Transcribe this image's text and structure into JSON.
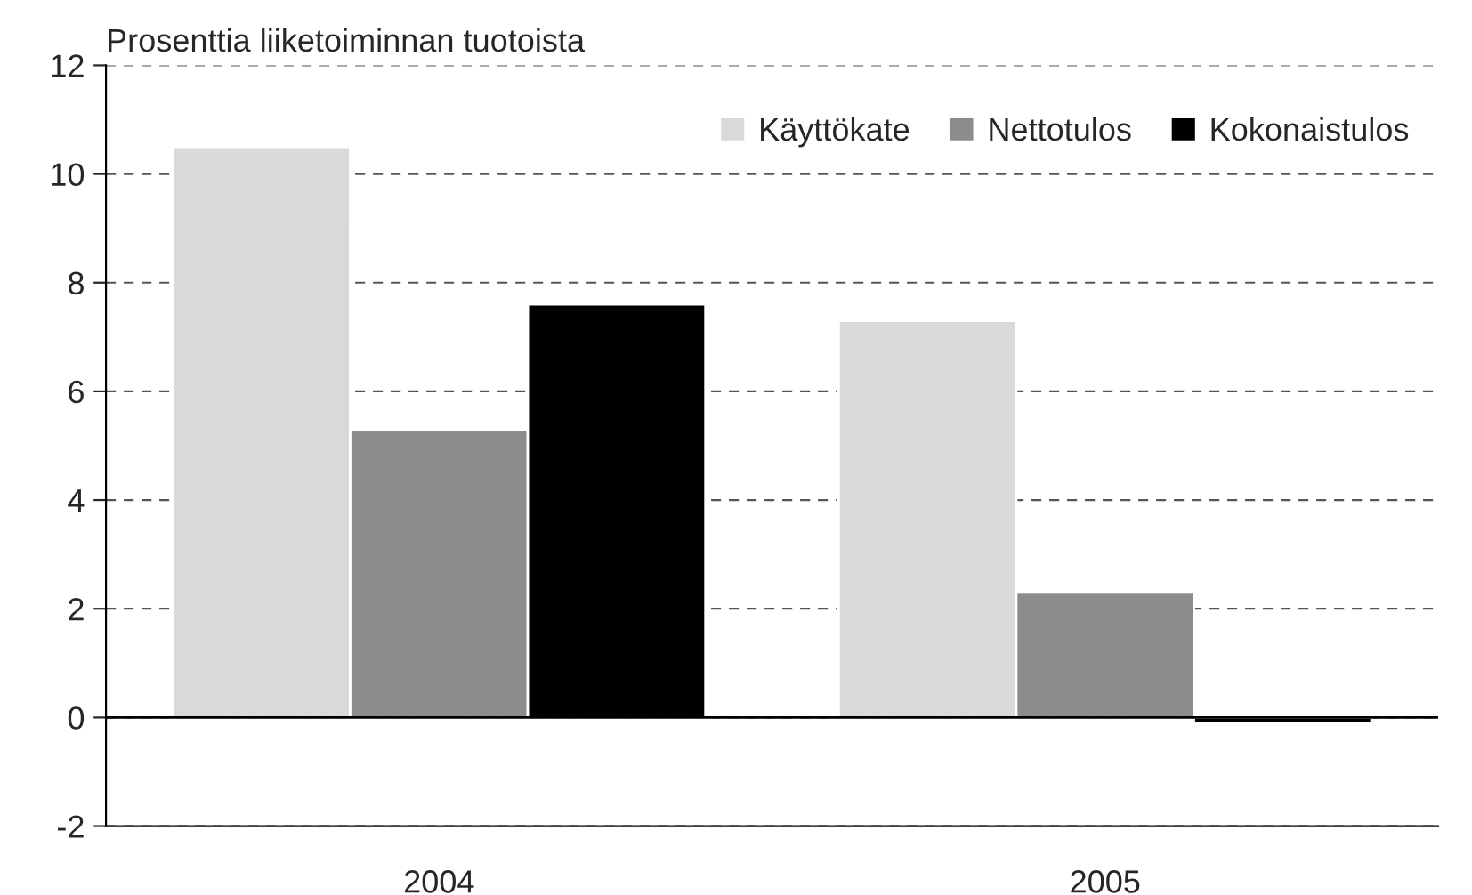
{
  "chart_data": {
    "type": "bar",
    "ylabel": "Prosenttia liiketoiminnan tuotoista",
    "categories": [
      "2004",
      "2005"
    ],
    "series": [
      {
        "name": "Käyttökate",
        "color": "#d9d9d9",
        "values": [
          10.5,
          7.3
        ]
      },
      {
        "name": "Nettotulos",
        "color": "#8c8c8c",
        "values": [
          5.3,
          2.3
        ]
      },
      {
        "name": "Kokonaistulos",
        "color": "#000000",
        "values": [
          7.6,
          -0.1
        ]
      }
    ],
    "ylim": [
      -2,
      12
    ],
    "yticks": [
      -2,
      0,
      2,
      4,
      6,
      8,
      10,
      12
    ],
    "grid": "y",
    "legend": "top right",
    "ref_lines": [
      {
        "axis": "y",
        "value": 0,
        "color": "#000000",
        "line_style": "solid"
      }
    ]
  }
}
